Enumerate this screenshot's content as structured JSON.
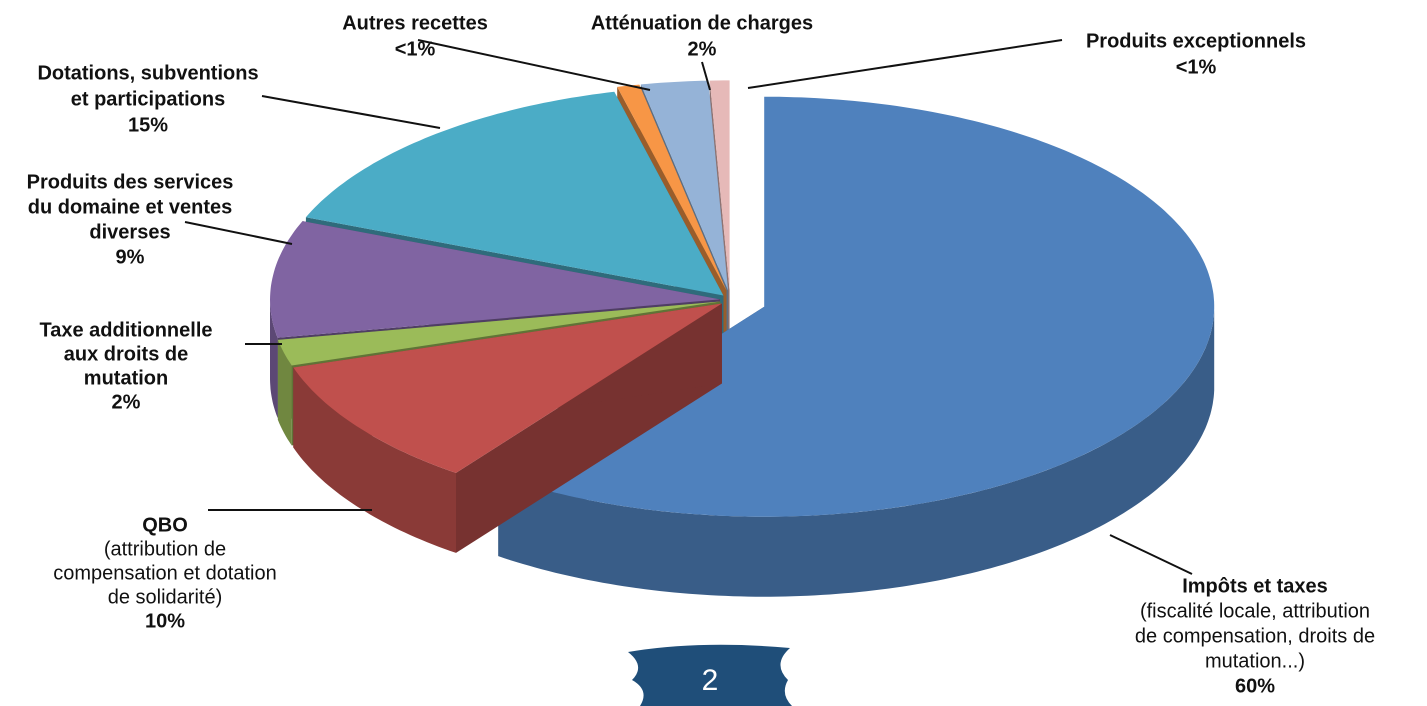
{
  "chart_data": {
    "type": "pie3d",
    "categories": [
      [
        "Impôts et taxes"
      ],
      [
        "QBO"
      ],
      [
        "Taxe additionnelle",
        "aux droits de",
        "mutation"
      ],
      [
        "Produits des services",
        "du domaine et ventes",
        "diverses"
      ],
      [
        "Dotations, subventions",
        "et participations"
      ],
      [
        "Autres recettes"
      ],
      [
        "Atténuation de charges"
      ],
      [
        "Produits exceptionnels"
      ]
    ],
    "details": [
      [
        "(fiscalité locale, attribution",
        "de compensation, droits de",
        "mutation...)"
      ],
      [
        "(attribution de",
        "compensation et dotation",
        "de solidarité)"
      ],
      [],
      [],
      [],
      [],
      [],
      []
    ],
    "values": [
      60,
      10,
      2,
      9,
      15,
      0.8,
      2.4,
      0.7
    ],
    "value_labels": [
      "60%",
      "10%",
      "2%",
      "9%",
      "15%",
      "<1%",
      "2%",
      "<1%"
    ],
    "colors": [
      "#4f81bd",
      "#c0504d",
      "#9bbb59",
      "#8064a2",
      "#4bacc6",
      "#f79646",
      "#95b3d7",
      "#e6b9b8"
    ],
    "page_number": "2"
  }
}
